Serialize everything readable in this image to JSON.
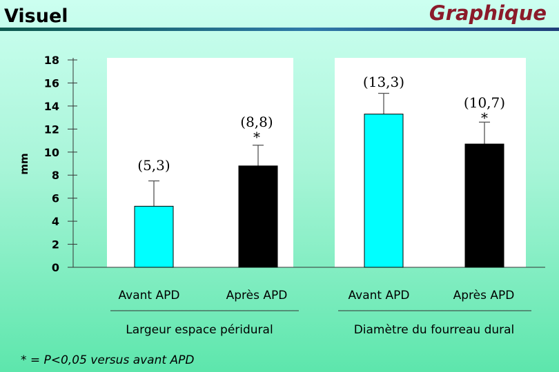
{
  "header": {
    "title": "Visuel",
    "section": "Graphique"
  },
  "footnote": "* = P<0,05 versus avant APD",
  "colors": {
    "before": "#00ffff",
    "after": "#000000",
    "panel": "#ffffff"
  },
  "chart_data": {
    "type": "bar",
    "ylabel": "mm",
    "ylim": [
      0,
      18
    ],
    "yticks": [
      0,
      2,
      4,
      6,
      8,
      10,
      12,
      14,
      16,
      18
    ],
    "categories": [
      "Avant APD",
      "Après APD"
    ],
    "groups": [
      {
        "name": "Largeur espace péridural",
        "values": [
          5.3,
          8.8
        ],
        "error_top": [
          7.5,
          10.6
        ],
        "value_labels": [
          "(5,3)",
          "(8,8)"
        ],
        "significance": [
          "",
          "*"
        ]
      },
      {
        "name": "Diamètre du fourreau dural",
        "values": [
          13.3,
          10.7
        ],
        "error_top": [
          15.1,
          12.6
        ],
        "value_labels": [
          "(13,3)",
          "(10,7)"
        ],
        "significance": [
          "",
          "*"
        ]
      }
    ]
  }
}
